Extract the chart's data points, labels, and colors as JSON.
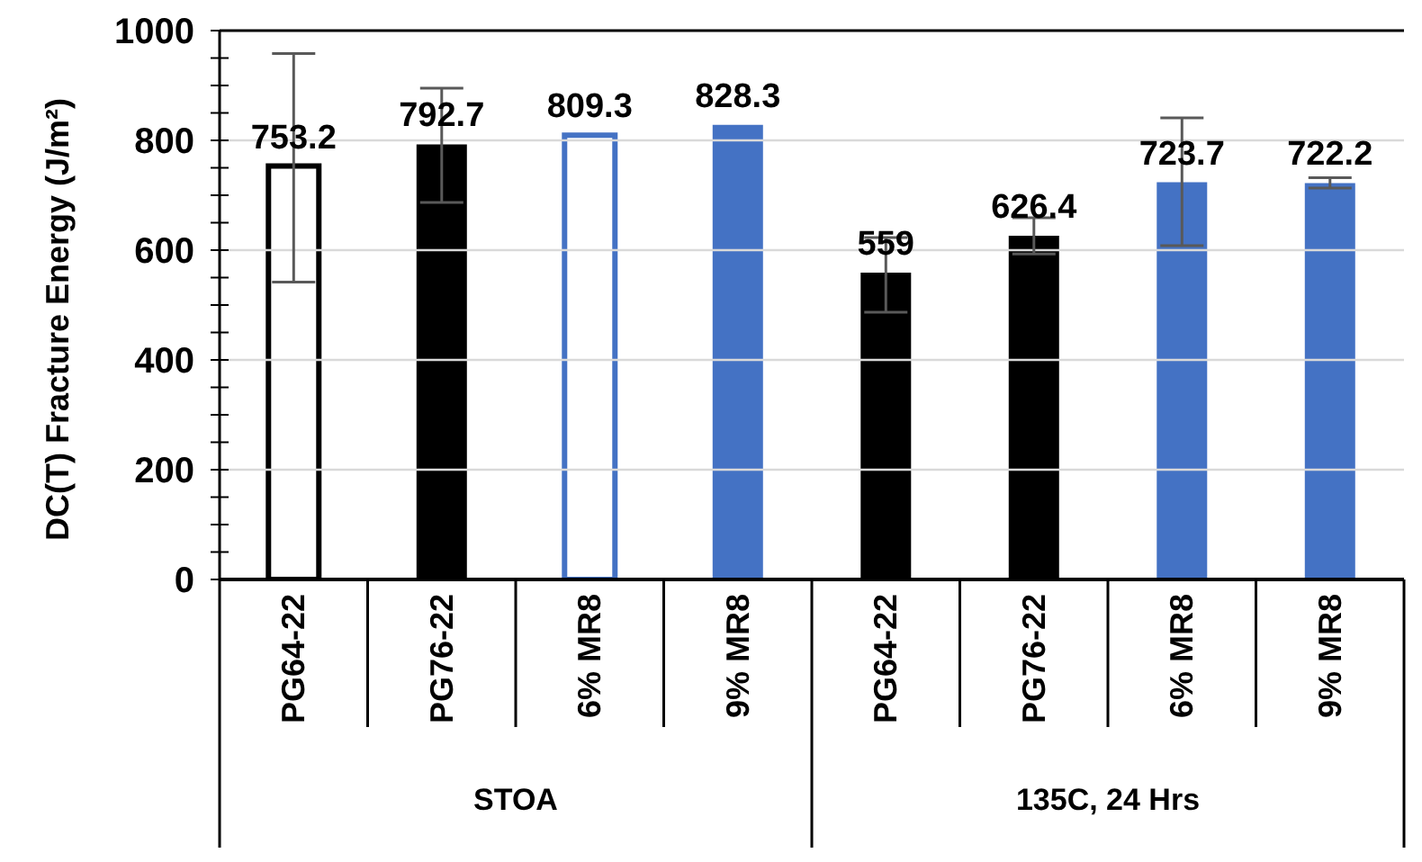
{
  "chart_data": {
    "type": "bar",
    "ylabel": "DC(T) Fracture Energy (J/m²)",
    "categories": [
      "PG64-22",
      "PG76-22",
      "6% MR8",
      "9% MR8",
      "PG64-22",
      "PG76-22",
      "6% MR8",
      "9% MR8"
    ],
    "stacked": true,
    "series": [
      {
        "color": "#000000",
        "values": [
          753.2,
          792.7,
          null,
          null,
          559,
          626.4,
          null,
          null
        ],
        "colors": [
          "#ffffff",
          "#000000",
          null,
          null,
          "#000000",
          "#000000",
          null,
          null
        ],
        "errors": [
          [
            542,
            958
          ],
          [
            687,
            895
          ],
          null,
          null,
          [
            487,
            623
          ],
          [
            593,
            659
          ],
          null,
          null
        ]
      },
      {
        "color": "#4472c4",
        "values": [
          null,
          null,
          809.3,
          828.3,
          null,
          null,
          723.7,
          722.2
        ],
        "colors": [
          null,
          null,
          "#ffffff",
          "#4472c4",
          null,
          null,
          "#4472c4",
          "#4472c4"
        ],
        "errors": [
          null,
          null,
          null,
          null,
          null,
          null,
          [
            608,
            841
          ],
          [
            713,
            732
          ]
        ]
      }
    ],
    "annotations": [
      "STOA",
      "135C, 24 Hrs"
    ],
    "ylim": [
      0,
      1000
    ],
    "yticks": [
      0,
      {
        "value": 50,
        "label": null
      },
      {
        "value": 100,
        "label": null
      },
      {
        "value": 150,
        "label": null
      },
      200,
      {
        "value": 250,
        "label": null
      },
      {
        "value": 300,
        "label": null
      },
      {
        "value": 350,
        "label": null
      },
      400,
      {
        "value": 450,
        "label": null
      },
      {
        "value": 500,
        "label": null
      },
      {
        "value": 550,
        "label": null
      },
      600,
      {
        "value": 650,
        "label": null
      },
      {
        "value": 700,
        "label": null
      },
      {
        "value": 750,
        "label": null
      },
      800,
      {
        "value": 850,
        "label": null
      },
      {
        "value": 900,
        "label": null
      },
      {
        "value": 950,
        "label": null
      },
      1000
    ],
    "grid": "y",
    "data_labels": true
  }
}
